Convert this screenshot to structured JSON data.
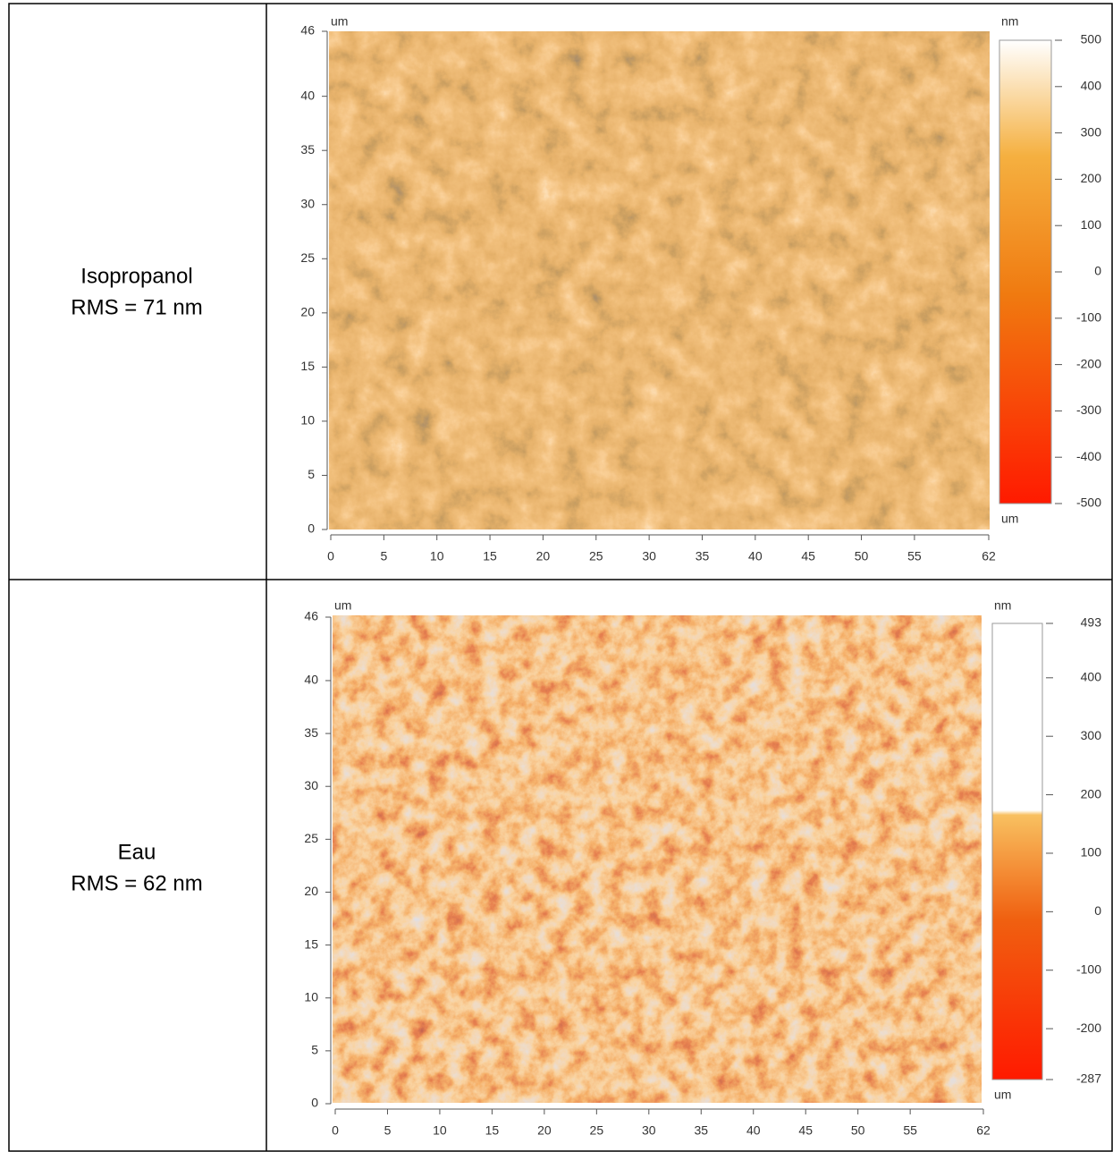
{
  "table": {
    "rows": [
      {
        "label": [
          "Isopropanol",
          "RMS = 71 nm"
        ],
        "image": {
          "x_unit": "um",
          "y_unit": "um",
          "z_unit": "nm",
          "xticks": [
            0,
            5,
            10,
            15,
            20,
            25,
            30,
            35,
            40,
            45,
            50,
            55,
            62
          ],
          "yticks": [
            0,
            5,
            10,
            15,
            20,
            25,
            30,
            35,
            40,
            46
          ],
          "zticks": [
            -500,
            -400,
            -300,
            -200,
            -100,
            0,
            100,
            200,
            300,
            400,
            500
          ]
        }
      },
      {
        "label": [
          "Eau",
          "RMS = 62 nm"
        ],
        "image": {
          "x_unit": "um",
          "y_unit": "um",
          "z_unit": "nm",
          "xticks": [
            0,
            5,
            10,
            15,
            20,
            25,
            30,
            35,
            40,
            45,
            50,
            55,
            62
          ],
          "yticks": [
            0,
            5,
            10,
            15,
            20,
            25,
            30,
            35,
            40,
            46
          ],
          "zticks": [
            -287,
            -200,
            -100,
            0,
            100,
            200,
            300,
            400,
            493
          ]
        }
      }
    ]
  }
}
